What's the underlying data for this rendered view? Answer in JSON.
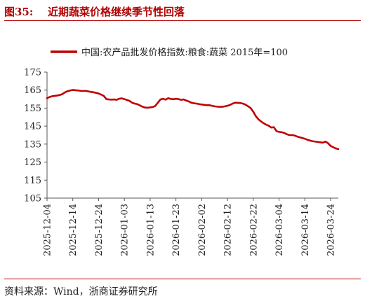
{
  "figure": {
    "label": "图35:",
    "title": "近期蔬菜价格继续季节性回落",
    "source": "资料来源：Wind，浙商证券研究所"
  },
  "colors": {
    "accent": "#b00000",
    "series": "#c00000"
  },
  "chart_data": {
    "type": "line",
    "title": "",
    "xlabel": "",
    "ylabel": "",
    "ylim": [
      105,
      175
    ],
    "yticks": [
      105,
      115,
      125,
      135,
      145,
      155,
      165,
      175
    ],
    "grid": false,
    "legend_position": "top",
    "xticks": [
      "2025-12-04",
      "2025-12-14",
      "2025-12-24",
      "2026-01-03",
      "2026-01-13",
      "2026-01-23",
      "2026-02-02",
      "2026-02-12",
      "2026-02-22",
      "2026-03-04",
      "2026-03-14",
      "2026-03-24"
    ],
    "series": [
      {
        "name": "中国:农产品批发价格指数:粮食:蔬菜 2015年=100",
        "points": [
          [
            "2025-12-04",
            160.5
          ],
          [
            "2025-12-05",
            161.2
          ],
          [
            "2025-12-06",
            161.6
          ],
          [
            "2025-12-07",
            161.8
          ],
          [
            "2025-12-08",
            162.0
          ],
          [
            "2025-12-09",
            162.3
          ],
          [
            "2025-12-10",
            162.8
          ],
          [
            "2025-12-11",
            163.8
          ],
          [
            "2025-12-12",
            164.4
          ],
          [
            "2025-12-13",
            164.8
          ],
          [
            "2025-12-14",
            165.1
          ],
          [
            "2025-12-15",
            164.9
          ],
          [
            "2025-12-16",
            164.8
          ],
          [
            "2025-12-17",
            164.6
          ],
          [
            "2025-12-18",
            164.5
          ],
          [
            "2025-12-19",
            164.6
          ],
          [
            "2025-12-20",
            164.3
          ],
          [
            "2025-12-21",
            164.0
          ],
          [
            "2025-12-22",
            163.8
          ],
          [
            "2025-12-23",
            163.5
          ],
          [
            "2025-12-24",
            163.1
          ],
          [
            "2025-12-25",
            162.5
          ],
          [
            "2025-12-26",
            161.8
          ],
          [
            "2025-12-27",
            160.0
          ],
          [
            "2025-12-28",
            159.8
          ],
          [
            "2025-12-29",
            159.7
          ],
          [
            "2025-12-30",
            159.8
          ],
          [
            "2025-12-31",
            159.6
          ],
          [
            "2026-01-01",
            160.2
          ],
          [
            "2026-01-02",
            160.4
          ],
          [
            "2026-01-03",
            160.0
          ],
          [
            "2026-01-04",
            159.5
          ],
          [
            "2026-01-05",
            159.0
          ],
          [
            "2026-01-06",
            158.0
          ],
          [
            "2026-01-07",
            157.5
          ],
          [
            "2026-01-08",
            157.2
          ],
          [
            "2026-01-09",
            156.5
          ],
          [
            "2026-01-10",
            155.8
          ],
          [
            "2026-01-11",
            155.3
          ],
          [
            "2026-01-12",
            155.2
          ],
          [
            "2026-01-13",
            155.4
          ],
          [
            "2026-01-14",
            155.6
          ],
          [
            "2026-01-15",
            156.2
          ],
          [
            "2026-01-16",
            158.0
          ],
          [
            "2026-01-17",
            159.8
          ],
          [
            "2026-01-18",
            160.2
          ],
          [
            "2026-01-19",
            159.7
          ],
          [
            "2026-01-20",
            160.5
          ],
          [
            "2026-01-21",
            160.1
          ],
          [
            "2026-01-22",
            159.9
          ],
          [
            "2026-01-23",
            160.2
          ],
          [
            "2026-01-24",
            160.0
          ],
          [
            "2026-01-25",
            159.6
          ],
          [
            "2026-01-26",
            159.8
          ],
          [
            "2026-01-27",
            159.2
          ],
          [
            "2026-01-28",
            158.7
          ],
          [
            "2026-01-29",
            158.0
          ],
          [
            "2026-01-30",
            157.7
          ],
          [
            "2026-01-31",
            157.5
          ],
          [
            "2026-02-01",
            157.2
          ],
          [
            "2026-02-02",
            157.0
          ],
          [
            "2026-02-03",
            156.8
          ],
          [
            "2026-02-04",
            156.6
          ],
          [
            "2026-02-05",
            156.6
          ],
          [
            "2026-02-06",
            156.3
          ],
          [
            "2026-02-07",
            156.0
          ],
          [
            "2026-02-08",
            155.8
          ],
          [
            "2026-02-09",
            155.7
          ],
          [
            "2026-02-10",
            155.7
          ],
          [
            "2026-02-11",
            156.0
          ],
          [
            "2026-02-12",
            156.3
          ],
          [
            "2026-02-13",
            156.8
          ],
          [
            "2026-02-14",
            157.5
          ],
          [
            "2026-02-15",
            158.0
          ],
          [
            "2026-02-16",
            157.9
          ],
          [
            "2026-02-17",
            157.8
          ],
          [
            "2026-02-18",
            157.5
          ],
          [
            "2026-02-19",
            156.9
          ],
          [
            "2026-02-20",
            156.0
          ],
          [
            "2026-02-21",
            155.0
          ],
          [
            "2026-02-22",
            153.0
          ],
          [
            "2026-02-23",
            150.5
          ],
          [
            "2026-02-24",
            148.8
          ],
          [
            "2026-02-25",
            147.6
          ],
          [
            "2026-02-26",
            146.6
          ],
          [
            "2026-02-27",
            145.8
          ],
          [
            "2026-02-28",
            145.2
          ],
          [
            "2026-03-01",
            144.2
          ],
          [
            "2026-03-02",
            144.4
          ],
          [
            "2026-03-03",
            142.2
          ],
          [
            "2026-03-04",
            141.8
          ],
          [
            "2026-03-05",
            141.6
          ],
          [
            "2026-03-06",
            141.2
          ],
          [
            "2026-03-07",
            140.5
          ],
          [
            "2026-03-08",
            140.0
          ],
          [
            "2026-03-09",
            140.0
          ],
          [
            "2026-03-10",
            139.8
          ],
          [
            "2026-03-11",
            139.2
          ],
          [
            "2026-03-12",
            138.8
          ],
          [
            "2026-03-13",
            138.4
          ],
          [
            "2026-03-14",
            138.0
          ],
          [
            "2026-03-15",
            137.4
          ],
          [
            "2026-03-16",
            137.0
          ],
          [
            "2026-03-17",
            136.6
          ],
          [
            "2026-03-18",
            136.4
          ],
          [
            "2026-03-19",
            136.2
          ],
          [
            "2026-03-20",
            136.0
          ],
          [
            "2026-03-21",
            135.8
          ],
          [
            "2026-03-22",
            136.4
          ],
          [
            "2026-03-23",
            135.5
          ],
          [
            "2026-03-24",
            134.0
          ],
          [
            "2026-03-25",
            133.3
          ],
          [
            "2026-03-26",
            132.6
          ],
          [
            "2026-03-27",
            132.2
          ]
        ]
      }
    ]
  }
}
